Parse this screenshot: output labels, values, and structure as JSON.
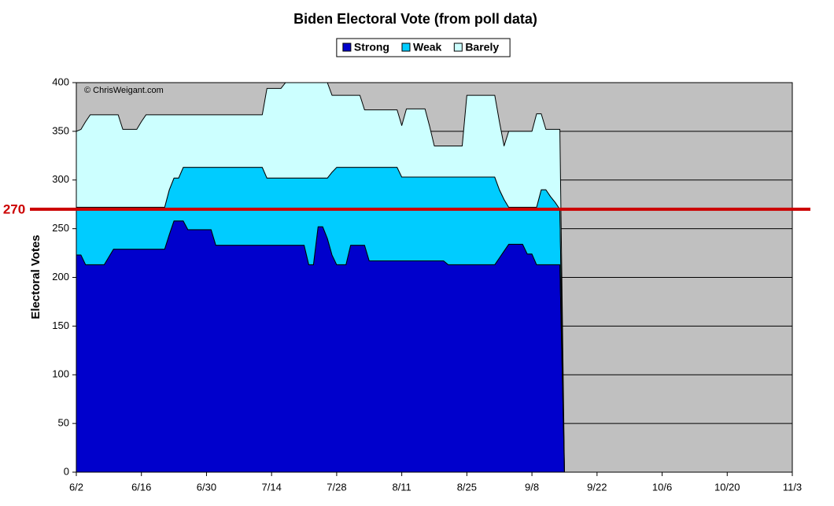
{
  "chart_data": {
    "type": "stacked_area",
    "title": "Biden Electoral Vote (from poll data)",
    "y_label": "Electoral Votes",
    "watermark": "© ChrisWeigant.com",
    "x": [
      0,
      1,
      2,
      3,
      4,
      5,
      6,
      7,
      8,
      9,
      10,
      11,
      12,
      13,
      14,
      15,
      16,
      17,
      18,
      19,
      20,
      21,
      22,
      23,
      24,
      25,
      26,
      27,
      28,
      29,
      30,
      31,
      32,
      33,
      34,
      35,
      36,
      37,
      38,
      39,
      40,
      41,
      42,
      43,
      44,
      45,
      46,
      47,
      48,
      49,
      50,
      51,
      52,
      53,
      54,
      55,
      56,
      57,
      58,
      59,
      60,
      61,
      62,
      63,
      64,
      65,
      66,
      67,
      68,
      69,
      70,
      71,
      72,
      73,
      74,
      75,
      76,
      77,
      78,
      79,
      80,
      81,
      82,
      83,
      84,
      85,
      86,
      87,
      88,
      89,
      90,
      91,
      92,
      93,
      94,
      95,
      96,
      97,
      98,
      99,
      100,
      101,
      102,
      103,
      104,
      105
    ],
    "series": [
      {
        "name": "Strong",
        "color": "#0000cc",
        "values": [
          223,
          223,
          213,
          213,
          213,
          213,
          213,
          221,
          229,
          229,
          229,
          229,
          229,
          229,
          229,
          229,
          229,
          229,
          229,
          229,
          244,
          258,
          258,
          258,
          249,
          249,
          249,
          249,
          249,
          249,
          233,
          233,
          233,
          233,
          233,
          233,
          233,
          233,
          233,
          233,
          233,
          233,
          233,
          233,
          233,
          233,
          233,
          233,
          233,
          233,
          213,
          213,
          252,
          252,
          240,
          223,
          213,
          213,
          213,
          233,
          233,
          233,
          233,
          217,
          217,
          217,
          217,
          217,
          217,
          217,
          217,
          217,
          217,
          217,
          217,
          217,
          217,
          217,
          217,
          217,
          213,
          213,
          213,
          213,
          213,
          213,
          213,
          213,
          213,
          213,
          213,
          220,
          227,
          234,
          234,
          234,
          234,
          224,
          224,
          213,
          213,
          213,
          213,
          213,
          213,
          0
        ]
      },
      {
        "name": "Weak",
        "color": "#00ccff",
        "values": [
          49,
          49,
          59,
          59,
          59,
          59,
          59,
          51,
          43,
          43,
          43,
          43,
          43,
          43,
          43,
          43,
          43,
          43,
          43,
          43,
          46,
          44,
          44,
          55,
          64,
          64,
          64,
          64,
          64,
          64,
          80,
          80,
          80,
          80,
          80,
          80,
          80,
          80,
          80,
          80,
          80,
          69,
          69,
          69,
          69,
          69,
          69,
          69,
          69,
          69,
          89,
          89,
          50,
          50,
          62,
          85,
          100,
          100,
          100,
          80,
          80,
          80,
          80,
          96,
          96,
          96,
          96,
          96,
          96,
          96,
          86,
          86,
          86,
          86,
          86,
          86,
          86,
          86,
          86,
          86,
          90,
          90,
          90,
          90,
          90,
          90,
          90,
          90,
          90,
          90,
          90,
          70,
          53,
          38,
          38,
          38,
          38,
          48,
          48,
          59,
          77,
          77,
          70,
          64,
          57,
          0
        ]
      },
      {
        "name": "Barely",
        "color": "#ccffff",
        "values": [
          78,
          80,
          88,
          95,
          95,
          95,
          95,
          95,
          95,
          95,
          80,
          80,
          80,
          80,
          88,
          95,
          95,
          95,
          95,
          95,
          77,
          65,
          65,
          54,
          54,
          54,
          54,
          54,
          54,
          54,
          54,
          54,
          54,
          54,
          54,
          54,
          54,
          54,
          54,
          54,
          54,
          92,
          92,
          92,
          92,
          98,
          98,
          98,
          98,
          98,
          98,
          98,
          98,
          98,
          98,
          79,
          74,
          74,
          74,
          74,
          74,
          74,
          59,
          59,
          59,
          59,
          59,
          59,
          59,
          59,
          53,
          70,
          70,
          70,
          70,
          70,
          52,
          32,
          32,
          32,
          32,
          32,
          32,
          32,
          84,
          84,
          84,
          84,
          84,
          84,
          84,
          70,
          55,
          78,
          78,
          78,
          78,
          78,
          78,
          96,
          78,
          62,
          69,
          75,
          82,
          0
        ]
      }
    ],
    "xlim": [
      0,
      154
    ],
    "xticks": [
      {
        "value": 0,
        "label": "6/2"
      },
      {
        "value": 14,
        "label": "6/16"
      },
      {
        "value": 28,
        "label": "6/30"
      },
      {
        "value": 42,
        "label": "7/14"
      },
      {
        "value": 56,
        "label": "7/28"
      },
      {
        "value": 70,
        "label": "8/11"
      },
      {
        "value": 84,
        "label": "8/25"
      },
      {
        "value": 98,
        "label": "9/8"
      },
      {
        "value": 112,
        "label": "9/22"
      },
      {
        "value": 126,
        "label": "10/6"
      },
      {
        "value": 140,
        "label": "10/20"
      },
      {
        "value": 154,
        "label": "11/3"
      }
    ],
    "ylim": [
      0,
      400
    ],
    "yticks": [
      0,
      50,
      100,
      150,
      200,
      250,
      300,
      350,
      400
    ],
    "grid": true,
    "background": "#c0c0c0",
    "legend": "top",
    "reference_line": {
      "value": 270,
      "color": "#cc0000"
    }
  }
}
